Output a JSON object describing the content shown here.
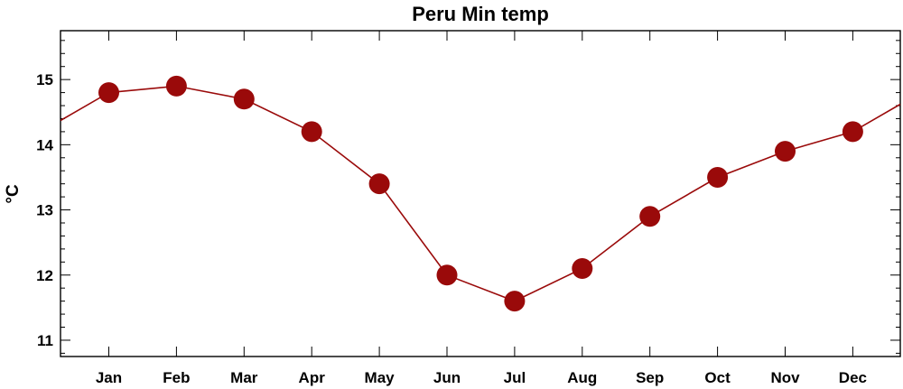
{
  "chart_data": {
    "type": "line",
    "title": "Peru Min temp",
    "xlabel": "",
    "ylabel": "°C",
    "categories": [
      "Jan",
      "Feb",
      "Mar",
      "Apr",
      "May",
      "Jun",
      "Jul",
      "Aug",
      "Sep",
      "Oct",
      "Nov",
      "Dec"
    ],
    "series": [
      {
        "values": [
          14.8,
          14.9,
          14.7,
          14.2,
          13.4,
          12.0,
          11.6,
          12.1,
          12.9,
          13.5,
          13.9,
          14.2
        ]
      }
    ],
    "yticks": [
      11,
      12,
      13,
      14,
      15
    ],
    "ylim": [
      10.75,
      15.75
    ],
    "grid": false,
    "legend": "none",
    "line_color": "#9a0a0a",
    "marker_color": "#9a0a0a"
  }
}
